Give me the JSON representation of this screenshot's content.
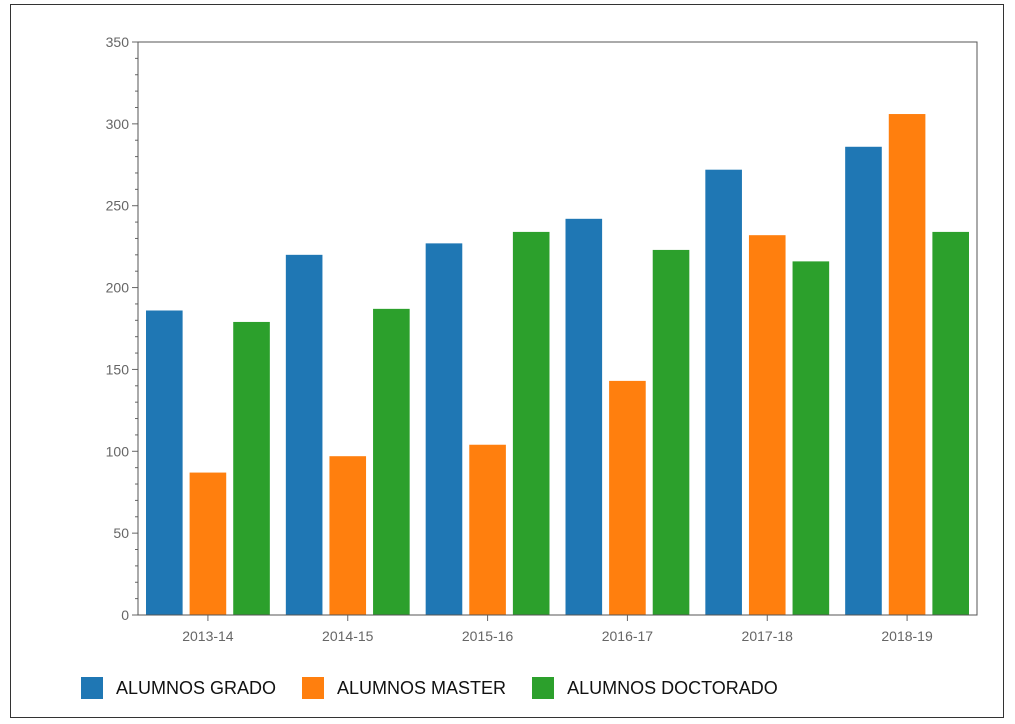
{
  "chart_data": {
    "type": "bar",
    "title": "",
    "xlabel": "",
    "ylabel": "",
    "ylim": [
      0,
      350
    ],
    "yticks": [
      0,
      50,
      100,
      150,
      200,
      250,
      300,
      350
    ],
    "categories": [
      "2013-14",
      "2014-15",
      "2015-16",
      "2016-17",
      "2017-18",
      "2018-19"
    ],
    "series": [
      {
        "name": "ALUMNOS GRADO",
        "color": "#1f77b4",
        "values": [
          186,
          220,
          227,
          242,
          272,
          286
        ]
      },
      {
        "name": "ALUMNOS MASTER",
        "color": "#ff7f0e",
        "values": [
          87,
          97,
          104,
          143,
          232,
          306
        ]
      },
      {
        "name": "ALUMNOS DOCTORADO",
        "color": "#2ca02c",
        "values": [
          179,
          187,
          234,
          223,
          216,
          234
        ]
      }
    ],
    "grid": false,
    "legend_position": "bottom"
  }
}
